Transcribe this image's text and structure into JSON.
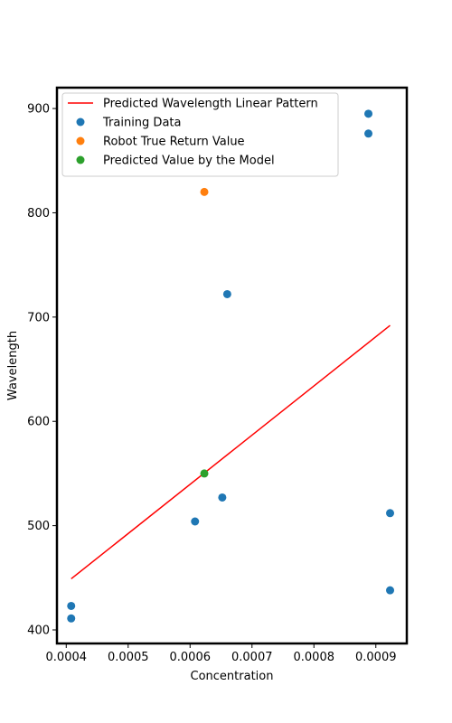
{
  "chart_data": {
    "type": "scatter",
    "title": "",
    "xlabel": "Concentration",
    "ylabel": "Wavelength",
    "xlim": [
      0.000385,
      0.00095
    ],
    "ylim": [
      387,
      920
    ],
    "x_ticks": [
      0.0004,
      0.0005,
      0.0006,
      0.0007,
      0.0008,
      0.0009
    ],
    "x_tick_labels": [
      "0.0004",
      "0.0005",
      "0.0006",
      "0.0007",
      "0.0008",
      "0.0009"
    ],
    "y_ticks": [
      400,
      500,
      600,
      700,
      800,
      900
    ],
    "y_tick_labels": [
      "400",
      "500",
      "600",
      "700",
      "800",
      "900"
    ],
    "grid": false,
    "legend_position": "top-left",
    "series": [
      {
        "name": "Predicted Wavelength Linear Pattern",
        "kind": "line",
        "color": "#ff0000",
        "points": [
          {
            "x": 0.000408,
            "y": 449
          },
          {
            "x": 0.000923,
            "y": 692
          }
        ]
      },
      {
        "name": "Training Data",
        "kind": "scatter",
        "color": "#1f77b4",
        "points": [
          {
            "x": 0.000408,
            "y": 423
          },
          {
            "x": 0.000408,
            "y": 411
          },
          {
            "x": 0.000608,
            "y": 504
          },
          {
            "x": 0.000652,
            "y": 527
          },
          {
            "x": 0.00066,
            "y": 722
          },
          {
            "x": 0.000888,
            "y": 895
          },
          {
            "x": 0.000888,
            "y": 876
          },
          {
            "x": 0.000923,
            "y": 512
          },
          {
            "x": 0.000923,
            "y": 438
          }
        ]
      },
      {
        "name": "Robot True Return Value",
        "kind": "scatter",
        "color": "#ff7f0e",
        "points": [
          {
            "x": 0.000623,
            "y": 820
          }
        ]
      },
      {
        "name": "Predicted Value by the Model",
        "kind": "scatter",
        "color": "#2ca02c",
        "points": [
          {
            "x": 0.000623,
            "y": 550
          }
        ]
      }
    ]
  }
}
